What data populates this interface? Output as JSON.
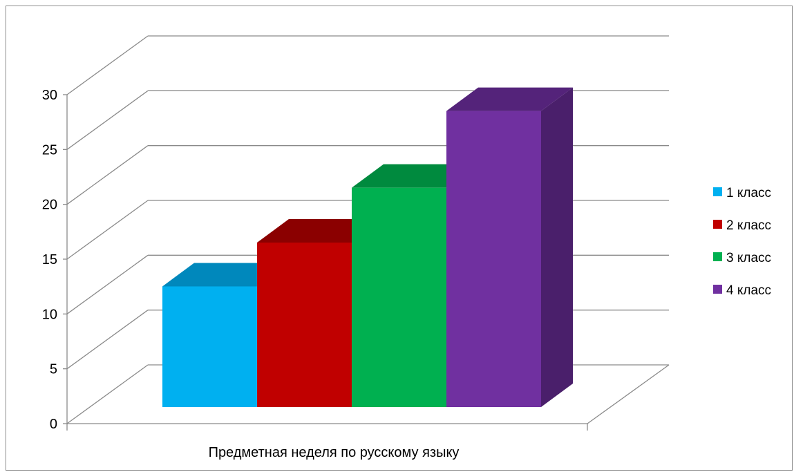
{
  "chart_data": {
    "type": "bar",
    "categories": [
      "Предметная неделя по русскому языку"
    ],
    "series": [
      {
        "name": "1 класс",
        "values": [
          11
        ],
        "color": "#00B0F0",
        "top_color": "#0088BC",
        "side_color": "#0088BC"
      },
      {
        "name": "2 класс",
        "values": [
          15
        ],
        "color": "#C00000",
        "top_color": "#8B0000",
        "side_color": "#8B0000"
      },
      {
        "name": "3 класс",
        "values": [
          20
        ],
        "color": "#00B050",
        "top_color": "#008A3E",
        "side_color": "#008A3E"
      },
      {
        "name": "4 класс",
        "values": [
          27
        ],
        "color": "#7030A0",
        "top_color": "#54237A",
        "side_color": "#4A1F6B"
      }
    ],
    "ylim": [
      0,
      30
    ],
    "yticks": [
      "0",
      "5",
      "10",
      "15",
      "20",
      "25",
      "30"
    ],
    "title": "",
    "xlabel": "",
    "ylabel": "",
    "grid": true,
    "legend_position": "right",
    "projection": "3d"
  }
}
